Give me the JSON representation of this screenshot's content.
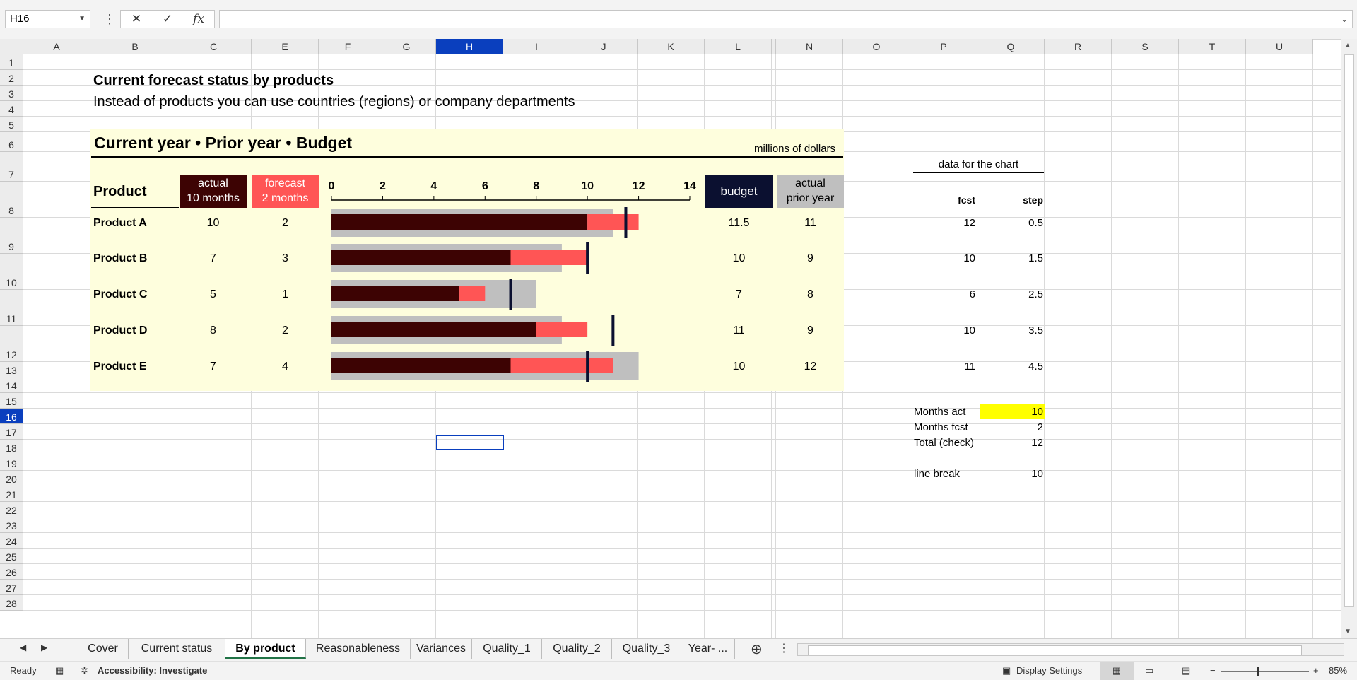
{
  "formula_bar": {
    "name_box": "H16",
    "cancel_icon": "✕",
    "enter_icon": "✓",
    "function_icon": "fx",
    "formula": ""
  },
  "columns": [
    "A",
    "B",
    "C",
    "D",
    "E",
    "F",
    "G",
    "H",
    "I",
    "J",
    "K",
    "L",
    "M",
    "N",
    "O",
    "P",
    "Q",
    "R",
    "S",
    "T",
    "U"
  ],
  "rows": [
    "1",
    "2",
    "3",
    "4",
    "5",
    "6",
    "7",
    "8",
    "9",
    "10",
    "11",
    "12",
    "13",
    "14",
    "15",
    "16",
    "17",
    "18",
    "19",
    "20",
    "21",
    "22",
    "23",
    "24",
    "25",
    "26",
    "27",
    "28"
  ],
  "selected_cell": {
    "column": "H",
    "row": "16"
  },
  "sheet": {
    "title": "Current forecast status by products",
    "subtitle": "Instead of products you can use countries (regions) or company departments",
    "chart_title": "Current year • Prior year • Budget",
    "units": "millions of dollars",
    "product_header": "Product",
    "actual_header_1": "actual",
    "actual_header_2": "10 months",
    "forecast_header_1": "forecast",
    "forecast_header_2": "2 months",
    "budget_header": "budget",
    "prior_header_1": "actual",
    "prior_header_2": "prior year",
    "side_title": "data for the chart",
    "fcst_header": "fcst",
    "step_header": "step",
    "products": [
      {
        "name": "Product A",
        "actual": "10",
        "forecast": "2",
        "budget": "11.5",
        "prior": "11",
        "fcst": "12",
        "step": "0.5"
      },
      {
        "name": "Product B",
        "actual": "7",
        "forecast": "3",
        "budget": "10",
        "prior": "9",
        "fcst": "10",
        "step": "1.5"
      },
      {
        "name": "Product C",
        "actual": "5",
        "forecast": "1",
        "budget": "7",
        "prior": "8",
        "fcst": "6",
        "step": "2.5"
      },
      {
        "name": "Product D",
        "actual": "8",
        "forecast": "2",
        "budget": "11",
        "prior": "9",
        "fcst": "10",
        "step": "3.5"
      },
      {
        "name": "Product E",
        "actual": "7",
        "forecast": "4",
        "budget": "10",
        "prior": "12",
        "fcst": "11",
        "step": "4.5"
      }
    ],
    "months_act_label": "Months act",
    "months_act": "10",
    "months_fcst_label": "Months fcst",
    "months_fcst": "2",
    "total_label": "Total (check)",
    "total": "12",
    "line_break_label": "line break",
    "line_break": "10"
  },
  "chart_data": {
    "type": "bar",
    "orientation": "horizontal",
    "categories": [
      "Product A",
      "Product B",
      "Product C",
      "Product D",
      "Product E"
    ],
    "series": [
      {
        "name": "actual 10 months",
        "values": [
          10,
          7,
          5,
          8,
          7
        ]
      },
      {
        "name": "forecast 2 months",
        "values": [
          2,
          3,
          1,
          2,
          4
        ]
      },
      {
        "name": "actual prior year",
        "values": [
          11,
          9,
          8,
          9,
          12
        ]
      },
      {
        "name": "budget",
        "values": [
          11.5,
          10,
          7,
          11,
          10
        ]
      }
    ],
    "xlim": [
      0,
      14
    ],
    "ticks": [
      "0",
      "2",
      "4",
      "6",
      "8",
      "10",
      "12",
      "14"
    ],
    "colors": {
      "actual": "#3d0303",
      "forecast": "#ff5555",
      "prior": "#bfbfbf",
      "budget": "#0b1030"
    }
  },
  "tabs": {
    "items": [
      "Cover",
      "Current status",
      "By product",
      "Reasonableness",
      "Variances",
      "Quality_1",
      "Quality_2",
      "Quality_3",
      "Year- ..."
    ],
    "active": "By product"
  },
  "status": {
    "ready": "Ready",
    "accessibility": "Accessibility: Investigate",
    "display_settings": "Display Settings",
    "zoom": "85%"
  }
}
